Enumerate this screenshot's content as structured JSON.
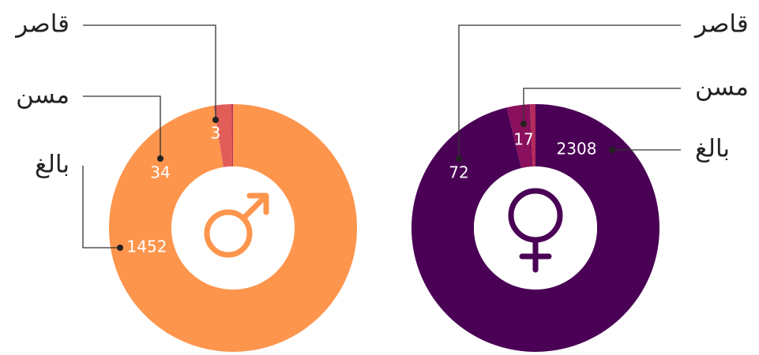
{
  "chart_data": [
    {
      "type": "pie",
      "categories": [
        "بالغ",
        "مسن",
        "قاصر"
      ],
      "values": [
        1452,
        34,
        3
      ],
      "colors": [
        "#fd954d",
        "#e15d58",
        "#bd3457"
      ]
    },
    {
      "type": "pie",
      "categories": [
        "بالغ",
        "مسن",
        "قاصر"
      ],
      "values": [
        2308,
        72,
        17
      ],
      "colors": [
        "#4a0055",
        "#8a0f5c",
        "#b32a5c"
      ]
    }
  ]
}
